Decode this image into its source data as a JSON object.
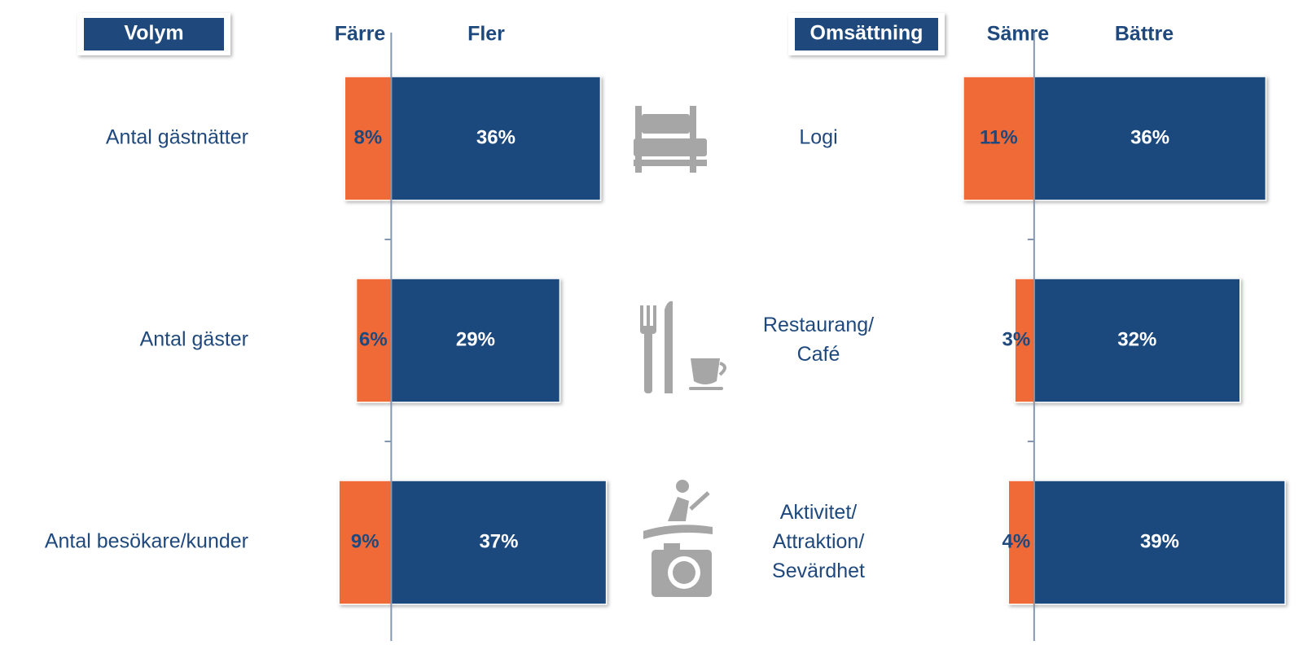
{
  "chart_data": [
    {
      "type": "diverging-bar",
      "title": "Volym",
      "categories": [
        "Antal gästnätter",
        "Antal gäster",
        "Antal besökare/kunder"
      ],
      "series": [
        {
          "name": "Färre",
          "color": "#f06a37",
          "values": [
            8,
            6,
            9
          ],
          "value_labels": [
            "8%",
            "6%",
            "9%"
          ]
        },
        {
          "name": "Fler",
          "color": "#1f497d",
          "values": [
            36,
            29,
            37
          ],
          "value_labels": [
            "36%",
            "29%",
            "37%"
          ]
        }
      ],
      "xlim": [
        -10,
        40
      ]
    },
    {
      "type": "diverging-bar",
      "title": "Omsättning",
      "categories": [
        "Logi",
        "Restaurang/\nCafé",
        "Aktivitet/\nAttraktion/\nSevärdhet"
      ],
      "series": [
        {
          "name": "Sämre",
          "color": "#f06a37",
          "values": [
            11,
            3,
            4
          ],
          "value_labels": [
            "11%",
            "3%",
            "4%"
          ]
        },
        {
          "name": "Bättre",
          "color": "#1f497d",
          "values": [
            36,
            32,
            39
          ],
          "value_labels": [
            "36%",
            "32%",
            "39%"
          ]
        }
      ],
      "xlim": [
        -12,
        40
      ]
    }
  ]
}
